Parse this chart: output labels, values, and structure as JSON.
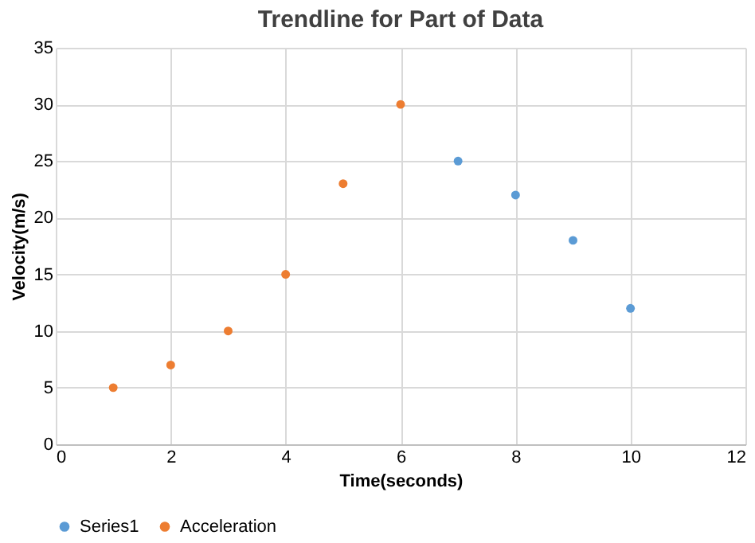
{
  "chart_data": {
    "type": "scatter",
    "title": "Trendline for Part of Data",
    "xlabel": "Time(seconds)",
    "ylabel": "Velocity(m/s)",
    "series": [
      {
        "name": "Series1",
        "color": "#5b9bd5",
        "x": [
          7,
          8,
          9,
          10
        ],
        "values": [
          25,
          22,
          18,
          12
        ]
      },
      {
        "name": "Acceleration",
        "color": "#ed7d31",
        "x": [
          1,
          2,
          3,
          4,
          5,
          6
        ],
        "values": [
          5,
          7,
          10,
          15,
          23,
          30
        ]
      }
    ],
    "xlim": [
      0,
      12
    ],
    "xticks": [
      0,
      2,
      4,
      6,
      8,
      10,
      12
    ],
    "ylim": [
      0,
      35
    ],
    "yticks": [
      0,
      5,
      10,
      15,
      20,
      25,
      30,
      35
    ],
    "grid": true,
    "legend": "bottom",
    "marker": "circle"
  }
}
